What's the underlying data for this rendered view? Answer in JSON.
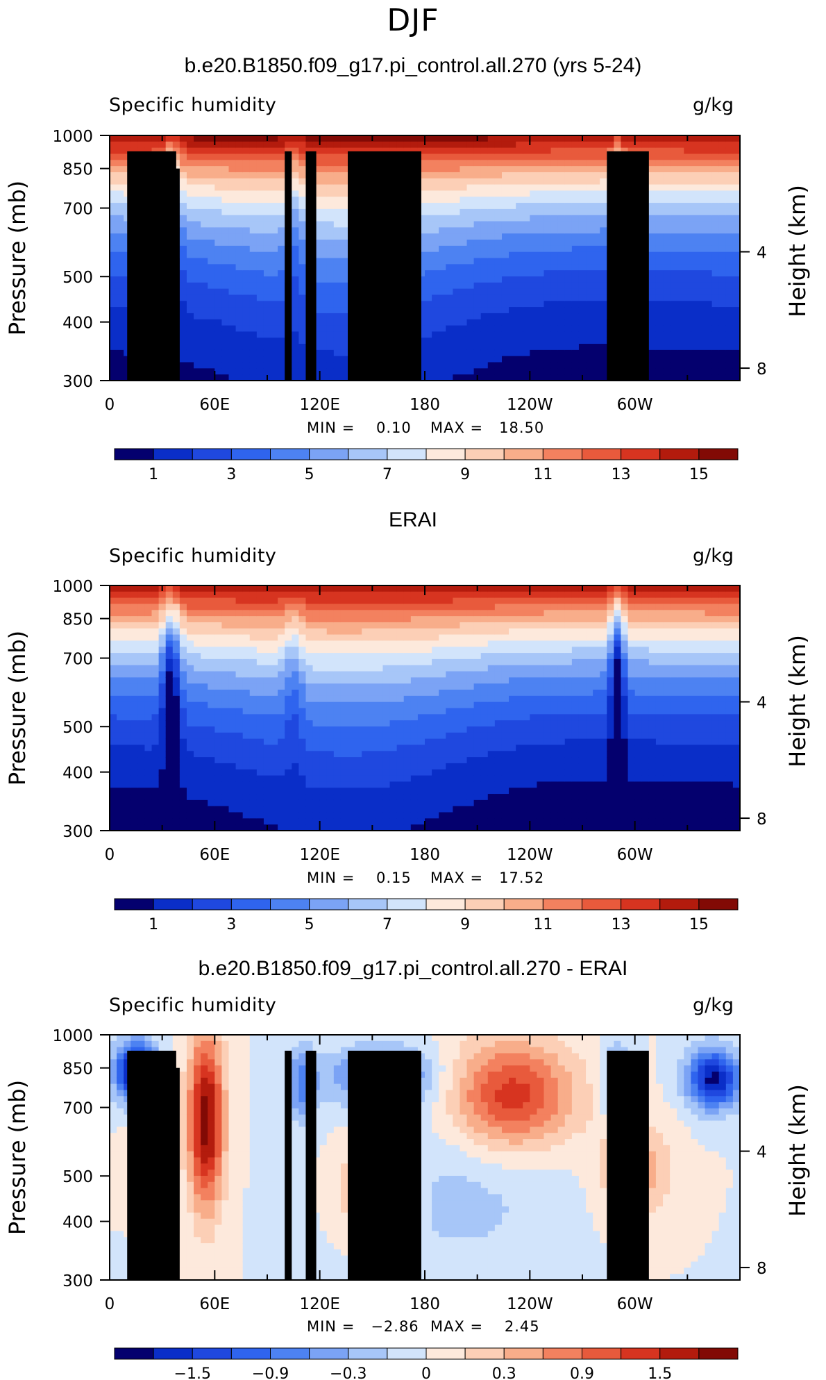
{
  "figure_title": "DJF",
  "chart_data": [
    {
      "type": "heatmap",
      "title": "b.e20.B1850.f09_g17.pi_control.all.270 (yrs 5-24)",
      "variable_label": "Specific humidity",
      "units_label": "g/kg",
      "ylabel": "Pressure (mb)",
      "y2label": "Height (km)",
      "x_ticks": [
        "0",
        "60E",
        "120E",
        "180",
        "120W",
        "60W"
      ],
      "y_ticks": [
        "300",
        "400",
        "500",
        "700",
        "850",
        "1000"
      ],
      "y2_ticks": [
        "8",
        "4"
      ],
      "ylim": [
        1000,
        300
      ],
      "y_scale": "log",
      "min_text": "MIN =    0.10",
      "max_text": "MAX =   18.50",
      "colorbar_labels": [
        "1",
        "3",
        "5",
        "7",
        "9",
        "11",
        "13",
        "15"
      ],
      "colorbar_colors": [
        "#04006e",
        "#0a2ec8",
        "#1f48df",
        "#2f64ee",
        "#4d82f2",
        "#7ba3f5",
        "#a7c6f8",
        "#d2e4fb",
        "#fde9dc",
        "#fccfb6",
        "#f8ad8a",
        "#f3815f",
        "#e85a3c",
        "#d73420",
        "#b31b0d",
        "#820a05"
      ],
      "surface_blocks_lon": [
        [
          10,
          38
        ],
        [
          31,
          40
        ],
        [
          100,
          104
        ],
        [
          112,
          118
        ],
        [
          136,
          178
        ],
        [
          284,
          308
        ]
      ]
    },
    {
      "type": "heatmap",
      "title": "ERAI",
      "variable_label": "Specific humidity",
      "units_label": "g/kg",
      "ylabel": "Pressure (mb)",
      "y2label": "Height (km)",
      "x_ticks": [
        "0",
        "60E",
        "120E",
        "180",
        "120W",
        "60W"
      ],
      "y_ticks": [
        "300",
        "400",
        "500",
        "700",
        "850",
        "1000"
      ],
      "y2_ticks": [
        "8",
        "4"
      ],
      "ylim": [
        1000,
        300
      ],
      "y_scale": "log",
      "min_text": "MIN =    0.15",
      "max_text": "MAX =   17.52",
      "colorbar_labels": [
        "1",
        "3",
        "5",
        "7",
        "9",
        "11",
        "13",
        "15"
      ],
      "colorbar_colors": [
        "#04006e",
        "#0a2ec8",
        "#1f48df",
        "#2f64ee",
        "#4d82f2",
        "#7ba3f5",
        "#a7c6f8",
        "#d2e4fb",
        "#fde9dc",
        "#fccfb6",
        "#f8ad8a",
        "#f3815f",
        "#e85a3c",
        "#d73420",
        "#b31b0d",
        "#820a05"
      ],
      "surface_blocks_lon": []
    },
    {
      "type": "heatmap",
      "title": "b.e20.B1850.f09_g17.pi_control.all.270 - ERAI",
      "variable_label": "Specific humidity",
      "units_label": "g/kg",
      "ylabel": "Pressure (mb)",
      "y2label": "Height (km)",
      "x_ticks": [
        "0",
        "60E",
        "120E",
        "180",
        "120W",
        "60W"
      ],
      "y_ticks": [
        "300",
        "400",
        "500",
        "700",
        "850",
        "1000"
      ],
      "y2_ticks": [
        "8",
        "4"
      ],
      "ylim": [
        1000,
        300
      ],
      "y_scale": "log",
      "min_text": "MIN =   −2.86",
      "max_text": "MAX =    2.45",
      "colorbar_labels": [
        "−1.5",
        "−0.9",
        "−0.3",
        "0",
        "0.3",
        "0.9",
        "1.5"
      ],
      "colorbar_colors": [
        "#04006e",
        "#0a2ec8",
        "#1f48df",
        "#2f64ee",
        "#4d82f2",
        "#7ba3f5",
        "#a7c6f8",
        "#d2e4fb",
        "#fde9dc",
        "#fccfb6",
        "#f8ad8a",
        "#f3815f",
        "#e85a3c",
        "#d73420",
        "#b31b0d",
        "#820a05"
      ],
      "surface_blocks_lon": [
        [
          10,
          38
        ],
        [
          31,
          40
        ],
        [
          100,
          104
        ],
        [
          112,
          118
        ],
        [
          136,
          178
        ],
        [
          284,
          308
        ]
      ]
    }
  ]
}
